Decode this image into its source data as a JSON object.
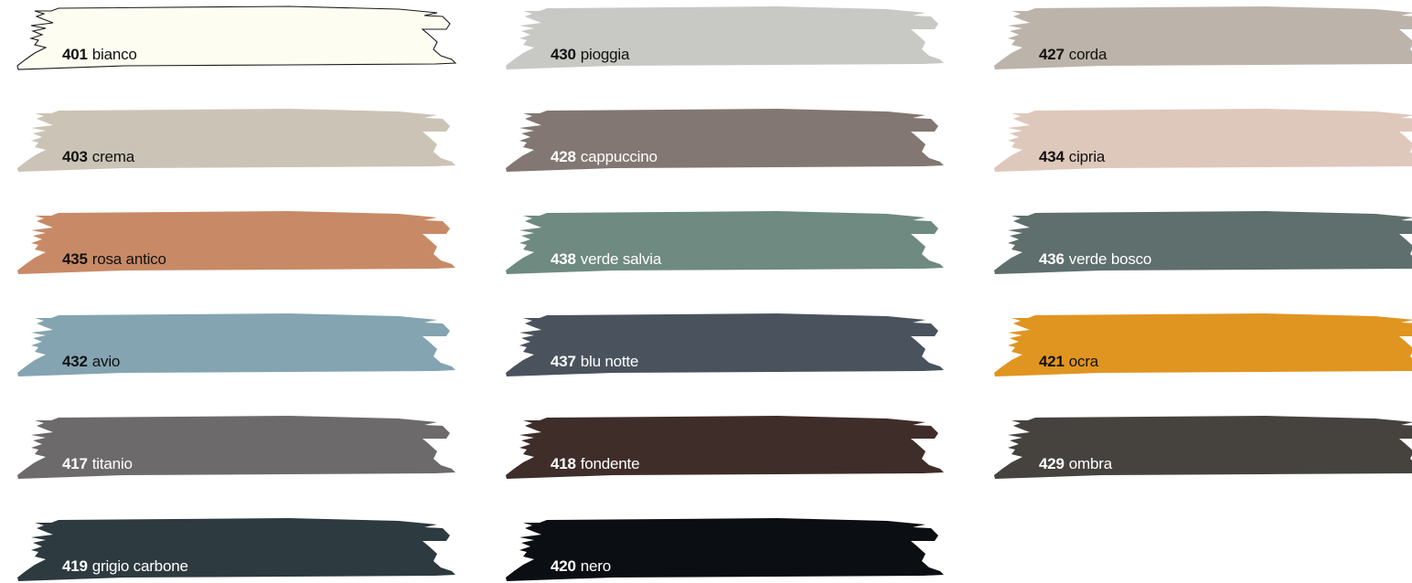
{
  "swatches": [
    {
      "code": "401",
      "name": "bianco",
      "color": "#fdfdf1",
      "text": "#111111",
      "outline": true
    },
    {
      "code": "430",
      "name": "pioggia",
      "color": "#c8c9c4",
      "text": "#111111"
    },
    {
      "code": "427",
      "name": "corda",
      "color": "#bcb3aa",
      "text": "#111111"
    },
    {
      "code": "403",
      "name": "crema",
      "color": "#cbc4b6",
      "text": "#111111"
    },
    {
      "code": "428",
      "name": "cappuccino",
      "color": "#827772",
      "text": "#ffffff"
    },
    {
      "code": "434",
      "name": "cipria",
      "color": "#dec8bb",
      "text": "#111111"
    },
    {
      "code": "435",
      "name": "rosa antico",
      "color": "#c88a66",
      "text": "#111111"
    },
    {
      "code": "438",
      "name": "verde salvia",
      "color": "#6f8a80",
      "text": "#ffffff"
    },
    {
      "code": "436",
      "name": "verde bosco",
      "color": "#5e6f6d",
      "text": "#ffffff"
    },
    {
      "code": "432",
      "name": "avio",
      "color": "#84a4b1",
      "text": "#111111"
    },
    {
      "code": "437",
      "name": "blu notte",
      "color": "#4a535d",
      "text": "#ffffff"
    },
    {
      "code": "421",
      "name": "ocra",
      "color": "#e09521",
      "text": "#111111"
    },
    {
      "code": "417",
      "name": "titanio",
      "color": "#6c6a6b",
      "text": "#ffffff"
    },
    {
      "code": "418",
      "name": "fondente",
      "color": "#3f2d29",
      "text": "#ffffff"
    },
    {
      "code": "429",
      "name": "ombra",
      "color": "#46433f",
      "text": "#ffffff"
    },
    {
      "code": "419",
      "name": "grigio carbone",
      "color": "#2d3a3f",
      "text": "#ffffff"
    },
    {
      "code": "420",
      "name": "nero",
      "color": "#0b0e12",
      "text": "#ffffff"
    }
  ]
}
